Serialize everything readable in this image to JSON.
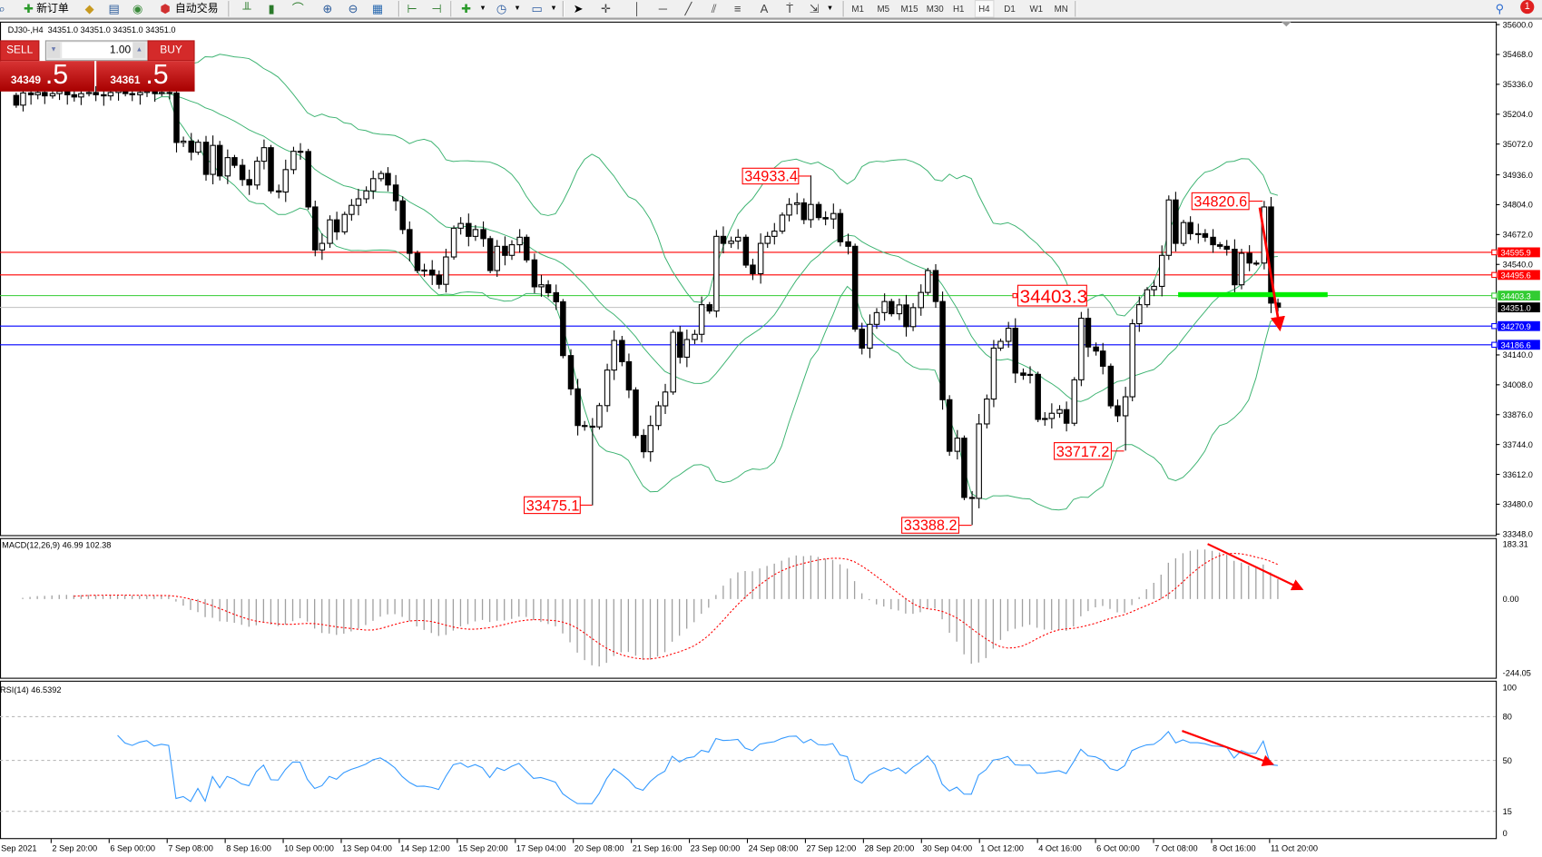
{
  "toolbar": {
    "new_order": "新订单",
    "auto_trading": "自动交易",
    "timeframes": [
      "M1",
      "M5",
      "M15",
      "M30",
      "H1",
      "H4",
      "D1",
      "W1",
      "MN"
    ],
    "active_timeframe": "H4",
    "notification_count": "1"
  },
  "chart_header": "DJ30-,H4  34351.0 34351.0 34351.0 34351.0",
  "trade_panel": {
    "sell": "SELL",
    "buy": "BUY",
    "lot": "1.00",
    "bid_main": "34349",
    "bid_frac": ".5",
    "ask_main": "34361",
    "ask_frac": ".5"
  },
  "chart_data": {
    "type": "candlestick",
    "symbol": "DJ30-",
    "timeframe": "H4",
    "ylim": [
      33348.0,
      35600.0
    ],
    "first_open": 35287,
    "closes": [
      35244,
      35298,
      35290,
      35300,
      35285,
      35295,
      35305,
      35290,
      35280,
      35295,
      35300,
      35290,
      35285,
      35300,
      35310,
      35295,
      35290,
      35300,
      35305,
      35295,
      35300,
      35298,
      35079,
      35085,
      35036,
      35080,
      34938,
      35066,
      34931,
      35012,
      34978,
      34915,
      34891,
      34996,
      35056,
      34865,
      34860,
      34959,
      35040,
      35039,
      34794,
      34604,
      34633,
      34737,
      34684,
      34761,
      34801,
      34830,
      34865,
      34919,
      34942,
      34891,
      34821,
      34694,
      34589,
      34513,
      34515,
      34493,
      34452,
      34573,
      34700,
      34721,
      34664,
      34694,
      34654,
      34513,
      34620,
      34580,
      34627,
      34660,
      34560,
      34441,
      34450,
      34415,
      34375,
      34137,
      33990,
      33828,
      33825,
      33822,
      33916,
      34073,
      34204,
      34110,
      33985,
      33784,
      33712,
      33828,
      33915,
      33976,
      34240,
      34130,
      34208,
      34231,
      34362,
      34334,
      34664,
      34633,
      34643,
      34660,
      34537,
      34499,
      34633,
      34664,
      34687,
      34758,
      34805,
      34812,
      34738,
      34805,
      34747,
      34741,
      34765,
      34640,
      34620,
      34254,
      34170,
      34275,
      34327,
      34376,
      34322,
      34361,
      34265,
      34349,
      34416,
      34513,
      34376,
      33942,
      33714,
      33772,
      33510,
      33506,
      33835,
      33945,
      34170,
      34200,
      34258,
      34060,
      34050,
      34054,
      33855,
      33859,
      33882,
      33898,
      33838,
      34030,
      34302,
      34175,
      34157,
      34090,
      33915,
      33871,
      33955,
      34278,
      34362,
      34428,
      34443,
      34580,
      34825,
      34633,
      34725,
      34676,
      34676,
      34660,
      34627,
      34620,
      34607,
      34450,
      34589,
      34546,
      34546,
      34794,
      34369,
      34351
    ],
    "highs": {
      "109": 34933.4,
      "171": 34820.6
    },
    "lows": {
      "79": 33475.1,
      "131": 33388.2,
      "152": 33717.2
    },
    "indicators": {
      "bollinger": {
        "period": 20,
        "deviation": 2,
        "color": "#3cb371"
      },
      "macd": {
        "label": "MACD(12,26,9) 46.99 102.38",
        "ylim": [
          -244.05,
          183.31
        ],
        "ticks": [
          "183.31",
          "0.00",
          "-244.05"
        ],
        "histogram_color": "#a0a0a0",
        "signal_color": "#ff0000"
      },
      "rsi": {
        "label": "RSI(14) 46.5392",
        "ylim": [
          0,
          100
        ],
        "levels": [
          80,
          50,
          15
        ],
        "ticks": [
          "100",
          "80",
          "50",
          "15",
          "0"
        ],
        "color": "#3399ff"
      }
    },
    "price_ticks": [
      "35600.0",
      "35468.0",
      "35336.0",
      "35204.0",
      "35072.0",
      "34936.0",
      "34804.0",
      "34672.0",
      "34540.0",
      "34140.0",
      "34008.0",
      "33876.0",
      "33744.0",
      "33612.0",
      "33480.0",
      "33348.0"
    ],
    "levels": [
      {
        "price": "34595.9",
        "color": "#ff0000"
      },
      {
        "price": "34495.6",
        "color": "#ff0000"
      },
      {
        "price": "34403.3",
        "color": "#33cc33"
      },
      {
        "price": "34270.9",
        "color": "#0000ff"
      },
      {
        "price": "34186.6",
        "color": "#0000ff"
      }
    ],
    "bid": {
      "price": "34351.0",
      "color": "#000000"
    },
    "price_labels": [
      "34933.4",
      "34820.6",
      "34403.3",
      "33717.2",
      "33475.1",
      "33388.2"
    ],
    "date_labels": [
      "Sep 2021",
      "2 Sep 20:00",
      "6 Sep 00:00",
      "7 Sep 08:00",
      "8 Sep 16:00",
      "10 Sep 00:00",
      "13 Sep 04:00",
      "14 Sep 12:00",
      "15 Sep 20:00",
      "17 Sep 04:00",
      "20 Sep 08:00",
      "21 Sep 16:00",
      "23 Sep 00:00",
      "24 Sep 08:00",
      "27 Sep 12:00",
      "28 Sep 20:00",
      "30 Sep 04:00",
      "1 Oct 12:00",
      "4 Oct 16:00",
      "6 Oct 00:00",
      "7 Oct 08:00",
      "8 Oct 16:00",
      "11 Oct 20:00"
    ],
    "annotation_color": "#ff0000",
    "support_zone_color": "#00ee00"
  }
}
